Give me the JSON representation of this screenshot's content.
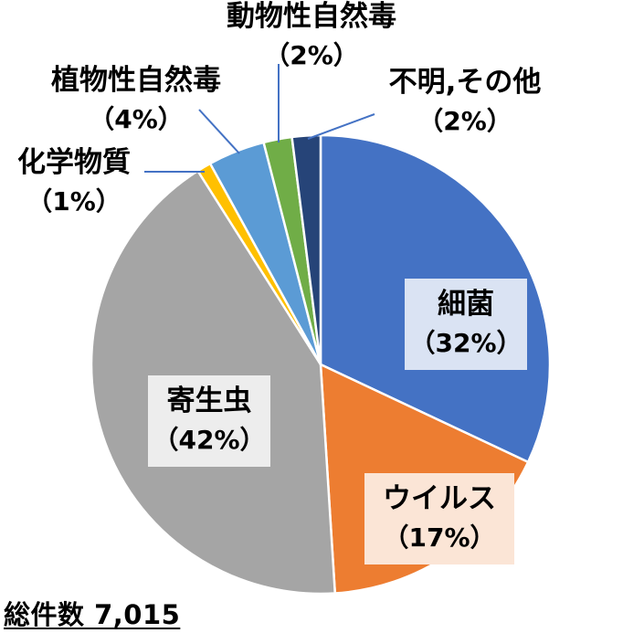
{
  "chart_data": {
    "type": "pie",
    "categories": [
      "細菌",
      "ウイルス",
      "寄生虫",
      "化学物質",
      "植物性自然毒",
      "動物性自然毒",
      "不明,その他"
    ],
    "values": [
      32,
      17,
      42,
      1,
      4,
      2,
      2
    ],
    "percent_labels": [
      "（32%）",
      "（17%）",
      "（42%）",
      "（1%）",
      "（4%）",
      "（2%）",
      "（2%）"
    ],
    "colors": [
      "#4472C4",
      "#ED7D31",
      "#A5A5A5",
      "#FFC000",
      "#5B9BD5",
      "#70AD47",
      "#264478"
    ],
    "label_boxes": [
      "#DAE3F3",
      "#FBE5D6",
      "#EDEDED"
    ],
    "start_angle_deg": 0,
    "direction": "clockwise",
    "legend": "none"
  },
  "total_label": "総件数 7,015"
}
